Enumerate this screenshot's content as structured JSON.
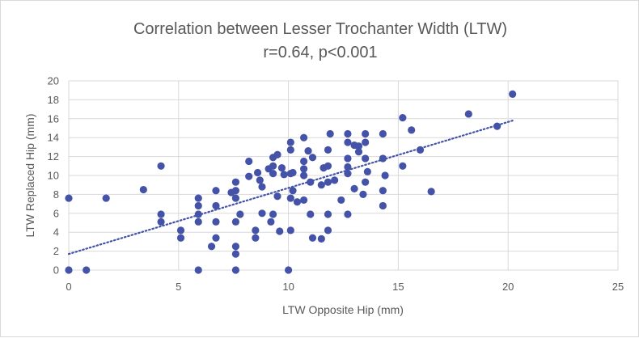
{
  "chart_data": {
    "type": "scatter",
    "title": "Correlation between Lesser Trochanter Width (LTW)",
    "subtitle": "r=0.64, p<0.001",
    "xlabel": "LTW Opposite Hip (mm)",
    "ylabel": "LTW Replaced Hip (mm)",
    "xlim": [
      0,
      25
    ],
    "ylim": [
      0,
      20
    ],
    "xticks": [
      "0",
      "5",
      "10",
      "15",
      "20",
      "25"
    ],
    "yticks": [
      "0",
      "2",
      "4",
      "6",
      "8",
      "10",
      "12",
      "14",
      "16",
      "18",
      "20"
    ],
    "grid": true,
    "legend": "none",
    "marker_color": "#4453A8",
    "trendline": {
      "type": "linear",
      "style": "dotted",
      "color": "#4453A8",
      "x": [
        0,
        20.2
      ],
      "y": [
        1.7,
        15.8
      ]
    },
    "points": [
      [
        0.0,
        7.6
      ],
      [
        0.0,
        0.0
      ],
      [
        0.8,
        0.0
      ],
      [
        1.7,
        7.6
      ],
      [
        3.4,
        8.5
      ],
      [
        4.2,
        11.0
      ],
      [
        4.2,
        5.9
      ],
      [
        4.2,
        5.1
      ],
      [
        5.1,
        4.2
      ],
      [
        5.1,
        3.4
      ],
      [
        5.9,
        7.6
      ],
      [
        5.9,
        6.8
      ],
      [
        5.9,
        5.9
      ],
      [
        5.9,
        5.1
      ],
      [
        5.9,
        0.0
      ],
      [
        6.5,
        2.5
      ],
      [
        6.7,
        8.4
      ],
      [
        6.7,
        6.8
      ],
      [
        6.7,
        5.1
      ],
      [
        6.7,
        3.4
      ],
      [
        7.4,
        8.2
      ],
      [
        7.6,
        9.3
      ],
      [
        7.6,
        8.4
      ],
      [
        7.6,
        7.6
      ],
      [
        7.6,
        5.1
      ],
      [
        7.6,
        2.5
      ],
      [
        7.6,
        1.7
      ],
      [
        7.6,
        0.0
      ],
      [
        7.8,
        5.9
      ],
      [
        8.2,
        11.5
      ],
      [
        8.2,
        9.9
      ],
      [
        8.5,
        4.2
      ],
      [
        8.5,
        3.4
      ],
      [
        8.6,
        10.3
      ],
      [
        8.7,
        9.5
      ],
      [
        8.8,
        8.8
      ],
      [
        8.8,
        6.0
      ],
      [
        9.1,
        10.7
      ],
      [
        9.3,
        11.9
      ],
      [
        9.3,
        11.0
      ],
      [
        9.3,
        10.2
      ],
      [
        9.3,
        5.9
      ],
      [
        9.2,
        5.1
      ],
      [
        9.5,
        12.2
      ],
      [
        9.5,
        7.8
      ],
      [
        9.6,
        4.1
      ],
      [
        9.7,
        10.8
      ],
      [
        9.8,
        10.1
      ],
      [
        10.0,
        0.0
      ],
      [
        10.1,
        13.5
      ],
      [
        10.1,
        12.7
      ],
      [
        10.1,
        10.2
      ],
      [
        10.1,
        7.6
      ],
      [
        10.1,
        4.2
      ],
      [
        10.2,
        10.3
      ],
      [
        10.2,
        8.4
      ],
      [
        10.4,
        7.2
      ],
      [
        10.7,
        14.0
      ],
      [
        10.7,
        11.5
      ],
      [
        10.7,
        10.7
      ],
      [
        10.7,
        10.0
      ],
      [
        10.7,
        7.4
      ],
      [
        10.9,
        12.6
      ],
      [
        11.0,
        9.3
      ],
      [
        11.0,
        5.9
      ],
      [
        11.1,
        11.9
      ],
      [
        11.1,
        3.4
      ],
      [
        11.5,
        9.0
      ],
      [
        11.5,
        3.3
      ],
      [
        11.6,
        10.8
      ],
      [
        11.8,
        12.7
      ],
      [
        11.8,
        11.0
      ],
      [
        11.8,
        9.3
      ],
      [
        11.8,
        5.9
      ],
      [
        11.8,
        4.2
      ],
      [
        11.9,
        14.4
      ],
      [
        12.1,
        9.5
      ],
      [
        12.4,
        7.4
      ],
      [
        12.7,
        14.4
      ],
      [
        12.7,
        13.5
      ],
      [
        12.7,
        11.8
      ],
      [
        12.7,
        10.9
      ],
      [
        12.7,
        10.2
      ],
      [
        12.7,
        5.9
      ],
      [
        13.0,
        13.2
      ],
      [
        13.0,
        8.6
      ],
      [
        13.2,
        13.1
      ],
      [
        13.2,
        12.5
      ],
      [
        13.4,
        8.0
      ],
      [
        13.5,
        14.4
      ],
      [
        13.5,
        13.5
      ],
      [
        13.5,
        11.8
      ],
      [
        13.5,
        9.3
      ],
      [
        13.6,
        10.4
      ],
      [
        14.3,
        14.4
      ],
      [
        14.3,
        11.8
      ],
      [
        14.3,
        8.4
      ],
      [
        14.3,
        6.8
      ],
      [
        14.4,
        10.0
      ],
      [
        15.2,
        16.1
      ],
      [
        15.2,
        11.0
      ],
      [
        15.6,
        14.8
      ],
      [
        16.0,
        12.7
      ],
      [
        16.5,
        8.3
      ],
      [
        18.2,
        16.5
      ],
      [
        19.5,
        15.2
      ],
      [
        20.2,
        18.6
      ]
    ]
  }
}
